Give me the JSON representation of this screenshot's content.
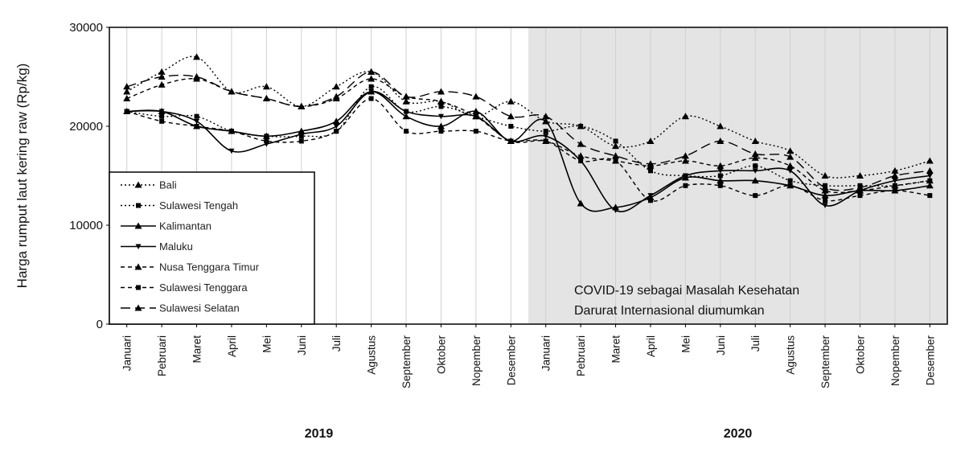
{
  "chart_data": {
    "type": "line",
    "ylabel": "Harga rumput laut kering raw (Rp/kg)",
    "xlabel": "",
    "ylim": [
      0,
      30000
    ],
    "yticks": [
      0,
      10000,
      20000,
      30000
    ],
    "grid": "vertical",
    "legend_position": "bottom-left",
    "categories": [
      "Januari",
      "Pebruari",
      "Maret",
      "April",
      "Mei",
      "Juni",
      "Juli",
      "Agustus",
      "September",
      "Oktober",
      "Nopember",
      "Desember",
      "Januari",
      "Pebruari",
      "Maret",
      "April",
      "Mei",
      "Juni",
      "Juli",
      "Agustus",
      "September",
      "Oktober",
      "Nopember",
      "Desember"
    ],
    "years": [
      {
        "label": "2019",
        "from": 0,
        "to": 11
      },
      {
        "label": "2020",
        "from": 12,
        "to": 23
      }
    ],
    "shaded_region": {
      "from": 12,
      "to": 23,
      "color": "#e4e4e4"
    },
    "annotation": [
      "COVID-19 sebagai Masalah Kesehatan",
      "Darurat Internasional diumumkan"
    ],
    "series": [
      {
        "name": "Bali",
        "style": "dotted",
        "marker": "triangle",
        "values": [
          23500,
          25500,
          27000,
          23500,
          24000,
          22000,
          24000,
          25500,
          22500,
          22500,
          21000,
          22500,
          20500,
          20000,
          18000,
          18500,
          21000,
          20000,
          18500,
          17500,
          15000,
          15000,
          15500,
          16500
        ]
      },
      {
        "name": "Sulawesi Tengah",
        "style": "dotted",
        "marker": "square",
        "values": [
          21500,
          21000,
          21000,
          19500,
          19000,
          19000,
          19500,
          24000,
          21500,
          22000,
          21000,
          20000,
          19500,
          20000,
          18500,
          15500,
          15000,
          15000,
          16000,
          14500,
          14000,
          14000,
          14000,
          14500
        ]
      },
      {
        "name": "Kalimantan",
        "style": "solid",
        "marker": "triangle",
        "values": [
          21500,
          21500,
          20000,
          19500,
          19000,
          19500,
          20500,
          23500,
          21000,
          20000,
          21500,
          18500,
          20500,
          12200,
          11800,
          12800,
          14800,
          14500,
          14500,
          14000,
          13000,
          13500,
          13500,
          14000
        ]
      },
      {
        "name": "Maluku",
        "style": "solid",
        "marker": "triangle-down",
        "values": [
          21500,
          21500,
          20500,
          17500,
          18200,
          19200,
          20000,
          23500,
          21500,
          21000,
          21000,
          18500,
          19000,
          16500,
          11500,
          13000,
          15000,
          15500,
          15500,
          15500,
          12000,
          13500,
          14500,
          15000
        ]
      },
      {
        "name": "Nusa Tenggara Timur",
        "style": "dashed",
        "marker": "triangle",
        "values": [
          22800,
          24200,
          24800,
          23500,
          22800,
          22000,
          22800,
          24800,
          23000,
          22500,
          21000,
          18500,
          18500,
          17000,
          16500,
          16000,
          16500,
          16000,
          16800,
          16000,
          13500,
          13500,
          14000,
          14500
        ]
      },
      {
        "name": "Sulawesi Tenggara",
        "style": "dashed",
        "marker": "square",
        "values": [
          21500,
          20500,
          20000,
          19500,
          18500,
          18500,
          19500,
          22800,
          19500,
          19500,
          19500,
          18500,
          18500,
          16500,
          16500,
          12500,
          14000,
          14000,
          13000,
          14000,
          12500,
          13000,
          13500,
          13000
        ]
      },
      {
        "name": "Sulawesi Selatan",
        "style": "longdash",
        "marker": "triangle",
        "values": [
          24000,
          25000,
          25000,
          23500,
          22800,
          22000,
          23000,
          25500,
          23000,
          23500,
          23000,
          21000,
          21000,
          18200,
          17000,
          16200,
          17000,
          18500,
          17200,
          16900,
          13800,
          13800,
          15000,
          15500
        ]
      }
    ]
  }
}
